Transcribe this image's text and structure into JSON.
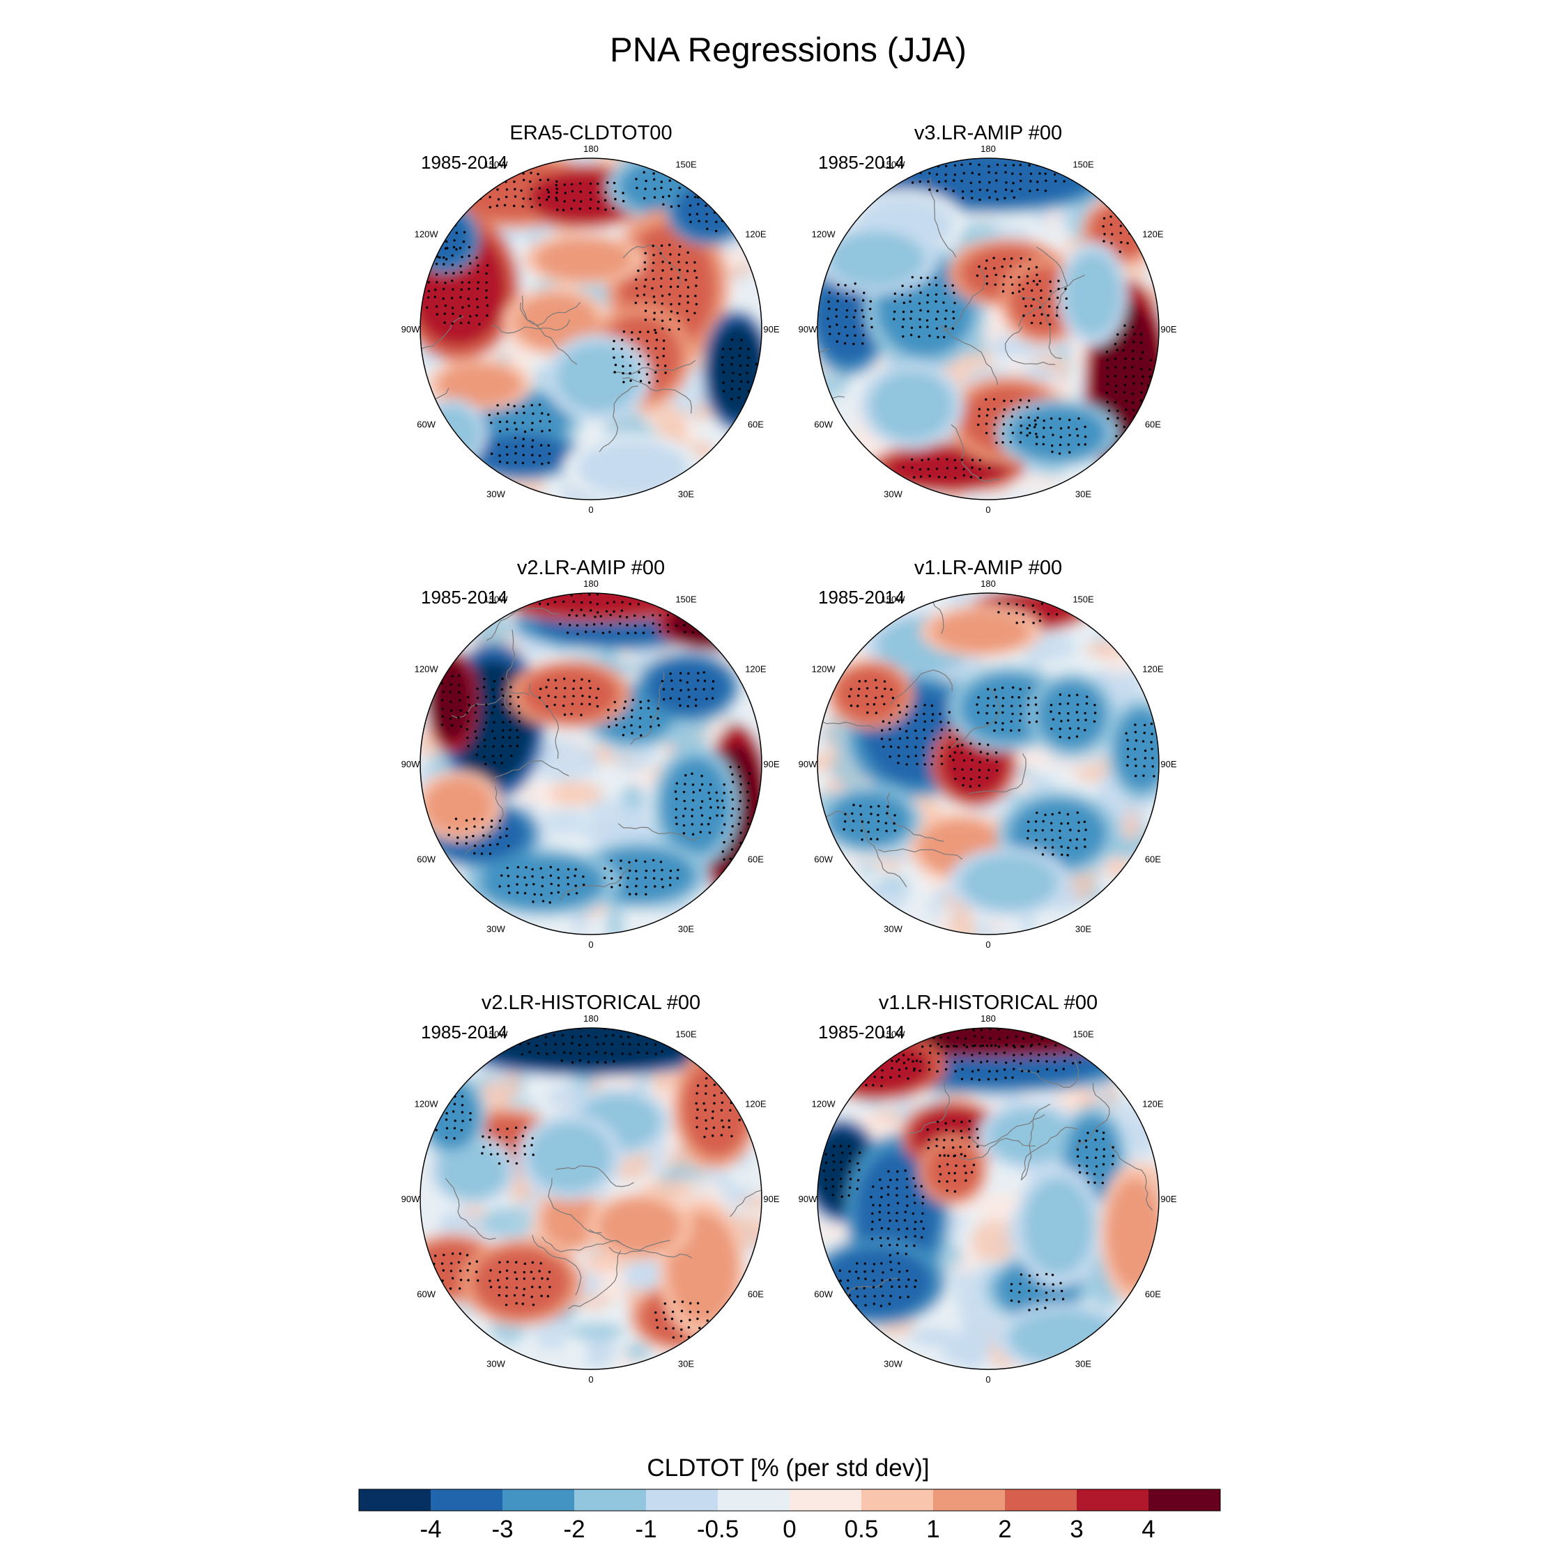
{
  "figure": {
    "title": "PNA Regressions (JJA)",
    "colorbar": {
      "label": "CLDTOT [% (per std dev)]",
      "ticks": [
        "-4",
        "-3",
        "-2",
        "-1",
        "-0.5",
        "0",
        "0.5",
        "1",
        "2",
        "3",
        "4"
      ],
      "colors": [
        "#053061",
        "#2166ac",
        "#4393c3",
        "#92c5de",
        "#c6dbef",
        "#e8eff4",
        "#fbe9e4",
        "#f9c5ad",
        "#ec9a7a",
        "#d6604d",
        "#b2182b",
        "#67001f"
      ]
    },
    "longitude_labels": {
      "top": "180",
      "upper_left": "150W",
      "upper_right": "150E",
      "left_upper": "120W",
      "right_upper": "120E",
      "left": "90W",
      "right": "90E",
      "left_lower": "60W",
      "right_lower": "60E",
      "lower_left": "30W",
      "lower_right": "30E",
      "bottom": "0"
    },
    "panels": [
      {
        "name": "ERA5-CLDTOT00",
        "period": "1985-2014"
      },
      {
        "name": "v3.LR-AMIP  #00",
        "period": "1985-2014"
      },
      {
        "name": "v2.LR-AMIP  #00",
        "period": "1985-2014"
      },
      {
        "name": "v1.LR-AMIP  #00",
        "period": "1985-2014"
      },
      {
        "name": "v2.LR-HISTORICAL  #00",
        "period": "1985-2014"
      },
      {
        "name": "v1.LR-HISTORICAL  #00",
        "period": "1985-2014"
      }
    ]
  }
}
